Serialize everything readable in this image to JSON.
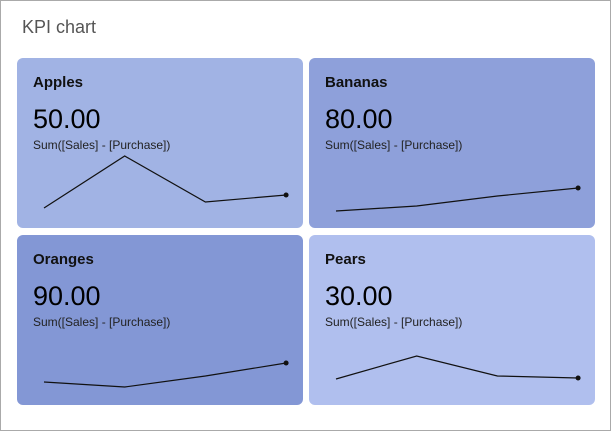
{
  "title": "KPI chart",
  "chart_data": {
    "type": "line",
    "title": "KPI chart",
    "kpis": [
      {
        "name": "Apples",
        "value": "50.00",
        "label": "Sum([Sales] - [Purchase])",
        "color": "#a1b3e4",
        "trend": [
          10,
          62,
          16,
          23
        ]
      },
      {
        "name": "Bananas",
        "value": "80.00",
        "label": "Sum([Sales] - [Purchase])",
        "color": "#8ea0da",
        "trend": [
          7,
          12,
          22,
          30
        ]
      },
      {
        "name": "Oranges",
        "value": "90.00",
        "label": "Sum([Sales] - [Purchase])",
        "color": "#8397d5",
        "trend": [
          13,
          8,
          19,
          32
        ]
      },
      {
        "name": "Pears",
        "value": "30.00",
        "label": "Sum([Sales] - [Purchase])",
        "color": "#b0bfee",
        "trend": [
          16,
          39,
          19,
          17
        ]
      }
    ]
  }
}
